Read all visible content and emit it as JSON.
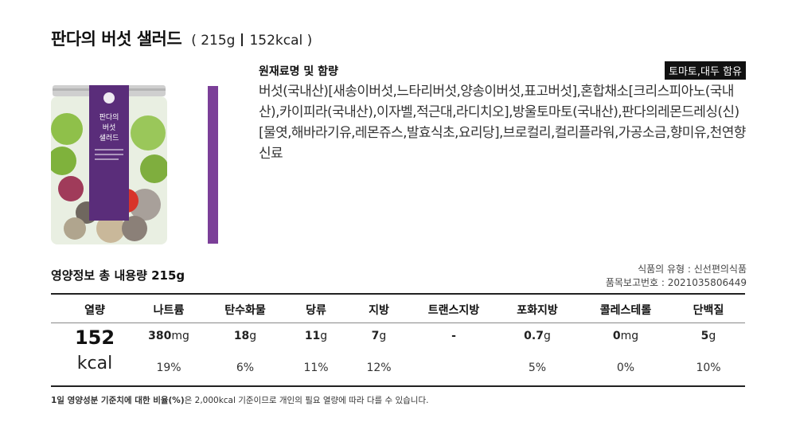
{
  "product": {
    "name": "판다의 버섯 샐러드",
    "weight": "215g",
    "calories": "152kcal",
    "label_brand": "판다의",
    "label_line1": "버섯",
    "label_line2": "샐러드"
  },
  "ingredients": {
    "heading": "원재료명 및 함량",
    "allergy_badge": "토마토,대두 함유",
    "text": "버섯(국내산)[새송이버섯,느타리버섯,양송이버섯,표고버섯],혼합채소[크리스피아노(국내산),카이피라(국내산),이자벨,적근대,라디치오],방울토마토(국내산),판다의레몬드레싱(신)[물엿,해바라기유,레몬쥬스,발효식초,요리당],브로컬리,컬리플라워,가공소금,향미유,천연향신료"
  },
  "nutrition": {
    "heading": "영양정보 총 내용량 215g",
    "food_type": "식품의 유형 : 신선편의식품",
    "report_number": "품목보고번호 : 2021035806449",
    "calories": {
      "label": "열량",
      "value": "152",
      "unit": "kcal"
    },
    "items": [
      {
        "label": "나트륨",
        "value": "380",
        "unit": "mg",
        "pct": "19%"
      },
      {
        "label": "탄수화물",
        "value": "18",
        "unit": "g",
        "pct": "6%"
      },
      {
        "label": "당류",
        "value": "11",
        "unit": "g",
        "pct": "11%"
      },
      {
        "label": "지방",
        "value": "7",
        "unit": "g",
        "pct": "12%"
      },
      {
        "label": "트랜스지방",
        "value": "-",
        "unit": "",
        "pct": ""
      },
      {
        "label": "포화지방",
        "value": "0.7",
        "unit": "g",
        "pct": "5%"
      },
      {
        "label": "콜레스테롤",
        "value": "0",
        "unit": "mg",
        "pct": "0%"
      },
      {
        "label": "단백질",
        "value": "5",
        "unit": "g",
        "pct": "10%"
      }
    ],
    "footnote_bold": "1일 영양성분 기준치에 대한 비율(%)",
    "footnote_rest": "은 2,000kcal 기준이므로 개인의 필요 열량에 따라 다를 수 있습니다."
  },
  "colors": {
    "accent_purple": "#7b3f98",
    "badge_bg": "#111111"
  }
}
